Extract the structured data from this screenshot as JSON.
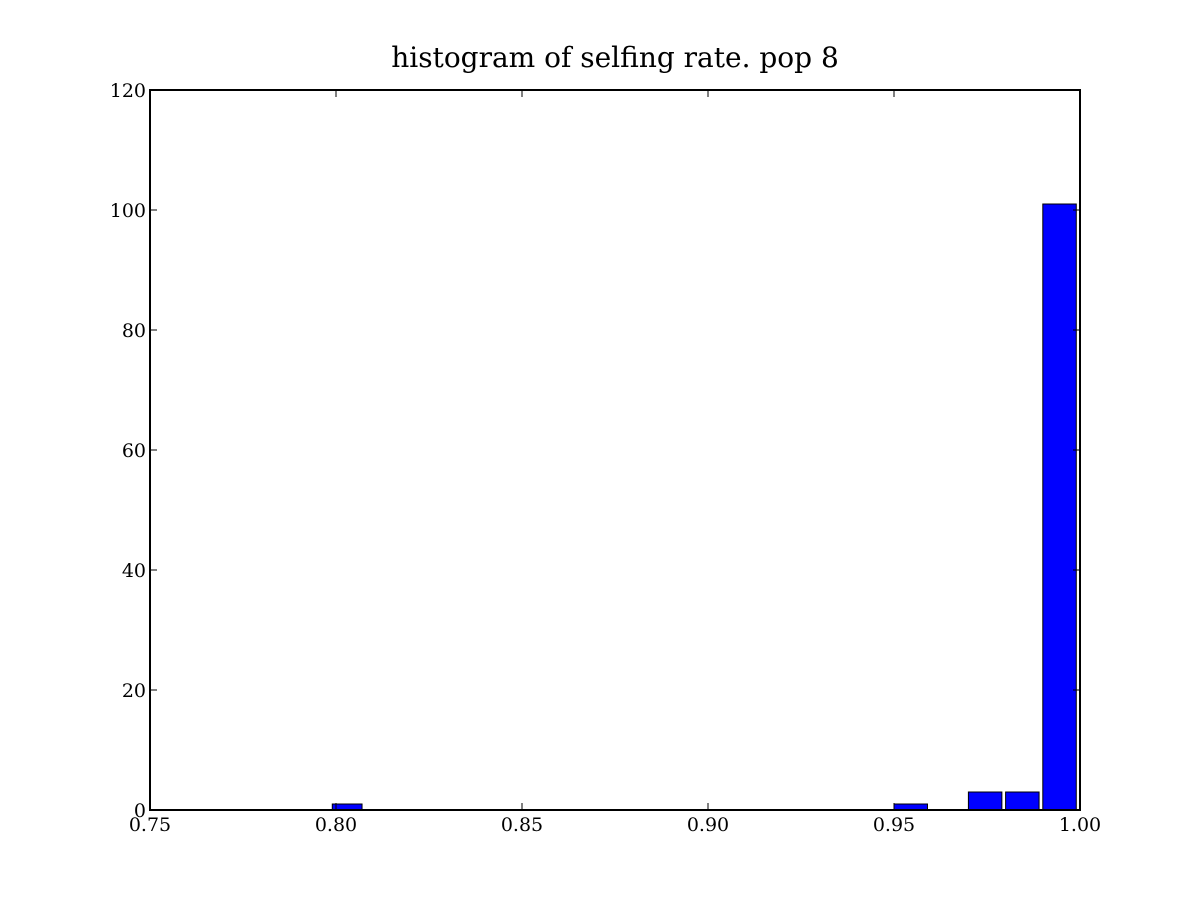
{
  "chart_data": {
    "type": "bar",
    "title": "histogram of selfing rate. pop 8",
    "xlabel": "",
    "ylabel": "",
    "xlim": [
      0.75,
      1.0
    ],
    "ylim": [
      0,
      120
    ],
    "xticks": [
      "0.75",
      "0.80",
      "0.85",
      "0.90",
      "0.95",
      "1.00"
    ],
    "yticks": [
      "0",
      "20",
      "40",
      "60",
      "80",
      "100",
      "120"
    ],
    "grid": false,
    "bins": [
      {
        "x_start": 0.799,
        "x_end": 0.807,
        "value": 1
      },
      {
        "x_start": 0.95,
        "x_end": 0.959,
        "value": 1
      },
      {
        "x_start": 0.97,
        "x_end": 0.979,
        "value": 3
      },
      {
        "x_start": 0.98,
        "x_end": 0.989,
        "value": 3
      },
      {
        "x_start": 0.99,
        "x_end": 0.999,
        "value": 101
      }
    ],
    "colors": {
      "bar_fill": "#0000ff",
      "bar_edge": "#000000",
      "axes": "#000000",
      "background": "#ffffff"
    }
  }
}
